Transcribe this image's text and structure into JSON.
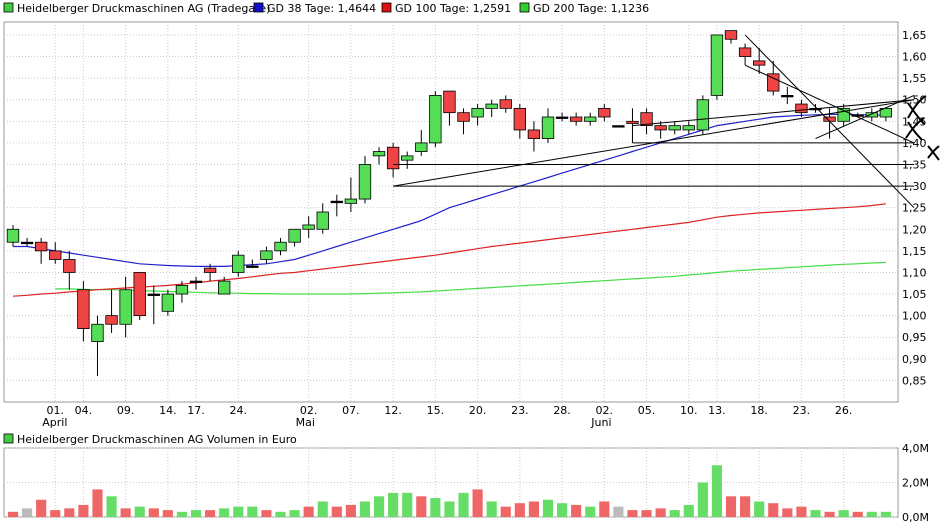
{
  "chart_data": [
    {
      "type": "candlestick",
      "legend": [
        {
          "label": "Heidelberger Druckmaschinen AG (Tradegate)",
          "color": "#44cc44"
        },
        {
          "label": "GD 38 Tage: 1,4644",
          "color": "#1111cc"
        },
        {
          "label": "GD 100 Tage: 1,2591",
          "color": "#dd1111"
        },
        {
          "label": "GD 200 Tage: 1,1236",
          "color": "#33cc33"
        }
      ],
      "colors": {
        "up": "#55dd55",
        "down": "#ee4444",
        "ma38": "#2222cc",
        "ma100": "#dd2222",
        "ma200": "#44dd44",
        "grid": "#cccccc",
        "trendline": "#000000"
      },
      "ylim": [
        0.8,
        1.68
      ],
      "y_ticks": [
        0.85,
        0.9,
        0.95,
        1.0,
        1.05,
        1.1,
        1.15,
        1.2,
        1.25,
        1.3,
        1.35,
        1.4,
        1.45,
        1.5,
        1.55,
        1.6,
        1.65
      ],
      "y_tick_labels": [
        "0,85",
        "0,90",
        "0,95",
        "1,00",
        "1,05",
        "1,10",
        "1,15",
        "1,20",
        "1,25",
        "1,30",
        "1,35",
        "1,40",
        "1,45",
        "1,50",
        "1,55",
        "1,60",
        "1,65"
      ],
      "x_tick_labels": [
        "01.",
        "04.",
        "09.",
        "14.",
        "17.",
        "24.",
        "02.",
        "07.",
        "12.",
        "15.",
        "20.",
        "23.",
        "28.",
        "02.",
        "05.",
        "10.",
        "13.",
        "18.",
        "23.",
        "26."
      ],
      "x_tick_positions": [
        3,
        5,
        8,
        11,
        13,
        16,
        21,
        24,
        27,
        30,
        33,
        36,
        39,
        42,
        45,
        48,
        50,
        53,
        56,
        59
      ],
      "month_labels": [
        {
          "label": "April",
          "position": 3
        },
        {
          "label": "Mai",
          "position": 21
        },
        {
          "label": "Juni",
          "position": 42
        }
      ],
      "candles": [
        {
          "o": 1.17,
          "h": 1.21,
          "l": 1.16,
          "c": 1.2
        },
        {
          "o": 1.17,
          "h": 1.18,
          "l": 1.16,
          "c": 1.17
        },
        {
          "o": 1.17,
          "h": 1.18,
          "l": 1.12,
          "c": 1.15
        },
        {
          "o": 1.15,
          "h": 1.17,
          "l": 1.12,
          "c": 1.13
        },
        {
          "o": 1.13,
          "h": 1.15,
          "l": 1.06,
          "c": 1.1
        },
        {
          "o": 1.06,
          "h": 1.08,
          "l": 0.94,
          "c": 0.97
        },
        {
          "o": 0.94,
          "h": 1.0,
          "l": 0.86,
          "c": 0.98
        },
        {
          "o": 1.0,
          "h": 1.06,
          "l": 0.96,
          "c": 0.98
        },
        {
          "o": 0.98,
          "h": 1.09,
          "l": 0.95,
          "c": 1.06
        },
        {
          "o": 1.1,
          "h": 1.1,
          "l": 0.99,
          "c": 1.0
        },
        {
          "o": 1.05,
          "h": 1.07,
          "l": 0.98,
          "c": 1.05
        },
        {
          "o": 1.01,
          "h": 1.06,
          "l": 1.0,
          "c": 1.05
        },
        {
          "o": 1.05,
          "h": 1.08,
          "l": 1.03,
          "c": 1.07
        },
        {
          "o": 1.08,
          "h": 1.09,
          "l": 1.06,
          "c": 1.08
        },
        {
          "o": 1.11,
          "h": 1.12,
          "l": 1.08,
          "c": 1.1
        },
        {
          "o": 1.05,
          "h": 1.09,
          "l": 1.05,
          "c": 1.08
        },
        {
          "o": 1.1,
          "h": 1.15,
          "l": 1.09,
          "c": 1.14
        },
        {
          "o": 1.115,
          "h": 1.13,
          "l": 1.11,
          "c": 1.115
        },
        {
          "o": 1.13,
          "h": 1.16,
          "l": 1.12,
          "c": 1.15
        },
        {
          "o": 1.15,
          "h": 1.18,
          "l": 1.14,
          "c": 1.17
        },
        {
          "o": 1.17,
          "h": 1.2,
          "l": 1.16,
          "c": 1.2
        },
        {
          "o": 1.2,
          "h": 1.23,
          "l": 1.18,
          "c": 1.21
        },
        {
          "o": 1.2,
          "h": 1.26,
          "l": 1.19,
          "c": 1.24
        },
        {
          "o": 1.265,
          "h": 1.28,
          "l": 1.23,
          "c": 1.265
        },
        {
          "o": 1.26,
          "h": 1.32,
          "l": 1.24,
          "c": 1.27
        },
        {
          "o": 1.27,
          "h": 1.37,
          "l": 1.26,
          "c": 1.35
        },
        {
          "o": 1.37,
          "h": 1.39,
          "l": 1.35,
          "c": 1.38
        },
        {
          "o": 1.39,
          "h": 1.4,
          "l": 1.32,
          "c": 1.34
        },
        {
          "o": 1.36,
          "h": 1.38,
          "l": 1.34,
          "c": 1.37
        },
        {
          "o": 1.38,
          "h": 1.43,
          "l": 1.37,
          "c": 1.4
        },
        {
          "o": 1.4,
          "h": 1.52,
          "l": 1.39,
          "c": 1.51
        },
        {
          "o": 1.52,
          "h": 1.52,
          "l": 1.44,
          "c": 1.47
        },
        {
          "o": 1.47,
          "h": 1.48,
          "l": 1.42,
          "c": 1.45
        },
        {
          "o": 1.46,
          "h": 1.49,
          "l": 1.44,
          "c": 1.48
        },
        {
          "o": 1.48,
          "h": 1.5,
          "l": 1.46,
          "c": 1.49
        },
        {
          "o": 1.5,
          "h": 1.51,
          "l": 1.47,
          "c": 1.48
        },
        {
          "o": 1.48,
          "h": 1.49,
          "l": 1.41,
          "c": 1.43
        },
        {
          "o": 1.43,
          "h": 1.45,
          "l": 1.38,
          "c": 1.41
        },
        {
          "o": 1.41,
          "h": 1.48,
          "l": 1.4,
          "c": 1.46
        },
        {
          "o": 1.46,
          "h": 1.47,
          "l": 1.45,
          "c": 1.46
        },
        {
          "o": 1.46,
          "h": 1.47,
          "l": 1.44,
          "c": 1.45
        },
        {
          "o": 1.45,
          "h": 1.47,
          "l": 1.44,
          "c": 1.46
        },
        {
          "o": 1.48,
          "h": 1.49,
          "l": 1.45,
          "c": 1.46
        },
        {
          "o": 1.44,
          "h": 1.44,
          "l": 1.44,
          "c": 1.44
        },
        {
          "o": 1.45,
          "h": 1.48,
          "l": 1.4,
          "c": 1.445
        },
        {
          "o": 1.47,
          "h": 1.48,
          "l": 1.42,
          "c": 1.44
        },
        {
          "o": 1.44,
          "h": 1.45,
          "l": 1.41,
          "c": 1.43
        },
        {
          "o": 1.43,
          "h": 1.45,
          "l": 1.42,
          "c": 1.44
        },
        {
          "o": 1.43,
          "h": 1.45,
          "l": 1.42,
          "c": 1.44
        },
        {
          "o": 1.43,
          "h": 1.51,
          "l": 1.42,
          "c": 1.5
        },
        {
          "o": 1.51,
          "h": 1.65,
          "l": 1.5,
          "c": 1.65
        },
        {
          "o": 1.66,
          "h": 1.66,
          "l": 1.63,
          "c": 1.64
        },
        {
          "o": 1.62,
          "h": 1.63,
          "l": 1.58,
          "c": 1.6
        },
        {
          "o": 1.59,
          "h": 1.62,
          "l": 1.56,
          "c": 1.58
        },
        {
          "o": 1.56,
          "h": 1.59,
          "l": 1.51,
          "c": 1.52
        },
        {
          "o": 1.51,
          "h": 1.53,
          "l": 1.49,
          "c": 1.51
        },
        {
          "o": 1.49,
          "h": 1.5,
          "l": 1.46,
          "c": 1.47
        },
        {
          "o": 1.48,
          "h": 1.49,
          "l": 1.47,
          "c": 1.48
        },
        {
          "o": 1.46,
          "h": 1.48,
          "l": 1.41,
          "c": 1.45
        },
        {
          "o": 1.45,
          "h": 1.49,
          "l": 1.44,
          "c": 1.48
        },
        {
          "o": 1.465,
          "h": 1.47,
          "l": 1.46,
          "c": 1.465
        },
        {
          "o": 1.46,
          "h": 1.48,
          "l": 1.45,
          "c": 1.47
        },
        {
          "o": 1.46,
          "h": 1.48,
          "l": 1.45,
          "c": 1.48
        }
      ],
      "ma38": [
        1.16,
        1.16,
        1.155,
        1.15,
        1.145,
        1.14,
        1.135,
        1.13,
        1.125,
        1.12,
        1.118,
        1.116,
        1.115,
        1.114,
        1.114,
        1.114,
        1.116,
        1.118,
        1.12,
        1.125,
        1.13,
        1.14,
        1.15,
        1.16,
        1.17,
        1.18,
        1.19,
        1.2,
        1.21,
        1.22,
        1.235,
        1.25,
        1.26,
        1.27,
        1.28,
        1.29,
        1.3,
        1.31,
        1.32,
        1.33,
        1.34,
        1.35,
        1.36,
        1.37,
        1.38,
        1.39,
        1.4,
        1.41,
        1.42,
        1.43,
        1.44,
        1.445,
        1.45,
        1.455,
        1.46,
        1.462,
        1.464,
        1.465,
        1.466,
        1.466,
        1.465,
        1.465,
        1.464
      ],
      "ma100": [
        1.045,
        1.047,
        1.05,
        1.052,
        1.055,
        1.057,
        1.06,
        1.062,
        1.064,
        1.066,
        1.068,
        1.07,
        1.073,
        1.076,
        1.08,
        1.083,
        1.086,
        1.09,
        1.094,
        1.098,
        1.1,
        1.104,
        1.108,
        1.112,
        1.116,
        1.12,
        1.124,
        1.128,
        1.132,
        1.136,
        1.14,
        1.145,
        1.15,
        1.155,
        1.16,
        1.164,
        1.168,
        1.172,
        1.176,
        1.18,
        1.184,
        1.188,
        1.192,
        1.196,
        1.2,
        1.204,
        1.208,
        1.212,
        1.216,
        1.222,
        1.228,
        1.232,
        1.235,
        1.238,
        1.24,
        1.242,
        1.244,
        1.246,
        1.248,
        1.25,
        1.252,
        1.255,
        1.259
      ],
      "ma200": [
        null,
        null,
        null,
        1.062,
        1.062,
        1.061,
        1.06,
        1.06,
        1.059,
        1.058,
        1.057,
        1.056,
        1.055,
        1.054,
        1.053,
        1.052,
        1.052,
        1.051,
        1.051,
        1.05,
        1.05,
        1.05,
        1.05,
        1.05,
        1.05,
        1.051,
        1.052,
        1.053,
        1.054,
        1.055,
        1.057,
        1.059,
        1.061,
        1.063,
        1.065,
        1.067,
        1.069,
        1.071,
        1.073,
        1.075,
        1.077,
        1.079,
        1.081,
        1.083,
        1.085,
        1.087,
        1.089,
        1.091,
        1.094,
        1.097,
        1.1,
        1.103,
        1.105,
        1.107,
        1.109,
        1.111,
        1.113,
        1.115,
        1.117,
        1.119,
        1.12,
        1.122,
        1.1236
      ],
      "trendlines": [
        {
          "from": {
            "x": 27,
            "y": 1.3
          },
          "to": {
            "x": 64,
            "y": 1.3
          }
        },
        {
          "from": {
            "x": 27,
            "y": 1.35
          },
          "to": {
            "x": 64,
            "y": 1.35
          }
        },
        {
          "from": {
            "x": 27,
            "y": 1.3
          },
          "to": {
            "x": 64,
            "y": 1.5
          }
        },
        {
          "from": {
            "x": 44,
            "y": 1.44
          },
          "to": {
            "x": 64,
            "y": 1.5
          }
        },
        {
          "from": {
            "x": 52,
            "y": 1.65
          },
          "to": {
            "x": 64,
            "y": 1.25
          }
        },
        {
          "from": {
            "x": 52,
            "y": 1.58
          },
          "to": {
            "x": 64,
            "y": 1.4
          }
        },
        {
          "from": {
            "x": 57,
            "y": 1.41
          },
          "to": {
            "x": 64,
            "y": 1.51
          }
        },
        {
          "from": {
            "x": 44,
            "y": 1.4
          },
          "to": {
            "x": 64,
            "y": 1.4
          }
        }
      ]
    },
    {
      "type": "bar",
      "title": "Heidelberger Druckmaschinen AG Volumen in Euro",
      "y_tick_labels": [
        "4,0M",
        "2,0M",
        "0,0M"
      ],
      "y_ticks": [
        4.0,
        2.0,
        0.0
      ],
      "ylim": [
        0,
        4.0
      ],
      "title_color": "#44cc44",
      "volumes": [
        0.3,
        0.5,
        1.0,
        0.4,
        0.5,
        0.7,
        1.6,
        1.2,
        0.5,
        0.6,
        0.5,
        0.4,
        0.3,
        0.4,
        0.4,
        0.5,
        0.6,
        0.6,
        0.4,
        0.3,
        0.4,
        0.6,
        0.9,
        0.6,
        0.7,
        0.9,
        1.2,
        1.4,
        1.4,
        1.2,
        1.1,
        0.9,
        1.4,
        1.6,
        0.9,
        0.6,
        0.8,
        0.9,
        1.0,
        0.8,
        0.7,
        0.6,
        0.9,
        0.6,
        0.4,
        0.4,
        0.5,
        0.4,
        0.7,
        2.0,
        3.0,
        1.2,
        1.2,
        0.9,
        0.8,
        0.5,
        0.6,
        0.4,
        0.3,
        0.4,
        0.3,
        0.3,
        0.3
      ],
      "volume_colors": [
        "#ee6666",
        "#bbbbbb",
        "#ee6666",
        "#ee6666",
        "#ee6666",
        "#ee6666",
        "#ee6666",
        "#66dd66",
        "#ee6666",
        "#66dd66",
        "#ee6666",
        "#ee6666",
        "#66dd66",
        "#66dd66",
        "#ee6666",
        "#66dd66",
        "#66dd66",
        "#66dd66",
        "#ee6666",
        "#66dd66",
        "#66dd66",
        "#ee6666",
        "#66dd66",
        "#ee6666",
        "#ee6666",
        "#66dd66",
        "#66dd66",
        "#66dd66",
        "#66dd66",
        "#ee6666",
        "#66dd66",
        "#66dd66",
        "#66dd66",
        "#ee6666",
        "#66dd66",
        "#ee6666",
        "#ee6666",
        "#ee6666",
        "#66dd66",
        "#66dd66",
        "#ee6666",
        "#66dd66",
        "#ee6666",
        "#bbbbbb",
        "#ee6666",
        "#ee6666",
        "#ee6666",
        "#66dd66",
        "#66dd66",
        "#66dd66",
        "#66dd66",
        "#ee6666",
        "#ee6666",
        "#66dd66",
        "#ee6666",
        "#ee6666",
        "#ee6666",
        "#66dd66",
        "#ee6666",
        "#66dd66",
        "#ee6666",
        "#66dd66",
        "#66dd66"
      ]
    }
  ]
}
